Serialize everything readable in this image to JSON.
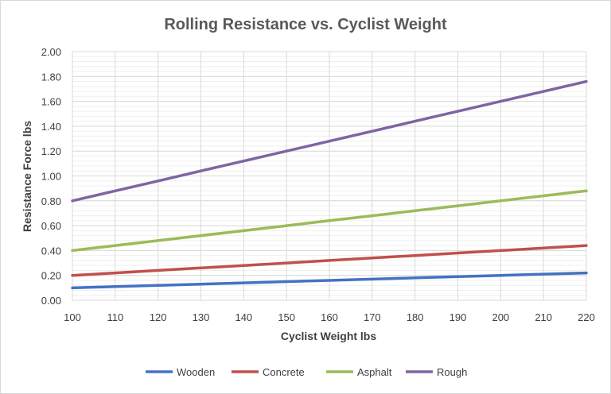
{
  "chart_data": {
    "type": "line",
    "title": "Rolling Resistance vs. Cyclist Weight",
    "xlabel": "Cyclist Weight lbs",
    "ylabel": "Resistance Force lbs",
    "x": [
      100,
      110,
      120,
      130,
      140,
      150,
      160,
      170,
      180,
      190,
      200,
      210,
      220
    ],
    "xlim": [
      100,
      220
    ],
    "ylim": [
      0,
      2
    ],
    "x_ticks": [
      "100",
      "110",
      "120",
      "130",
      "140",
      "150",
      "160",
      "170",
      "180",
      "190",
      "200",
      "210",
      "220"
    ],
    "y_ticks": [
      "0.00",
      "0.20",
      "0.40",
      "0.60",
      "0.80",
      "1.00",
      "1.20",
      "1.40",
      "1.60",
      "1.80",
      "2.00"
    ],
    "grid": true,
    "legend_position": "bottom",
    "series": [
      {
        "name": "Wooden",
        "color": "#4472c4",
        "values": [
          0.1,
          0.11,
          0.12,
          0.13,
          0.14,
          0.15,
          0.16,
          0.17,
          0.18,
          0.19,
          0.2,
          0.21,
          0.22
        ]
      },
      {
        "name": "Concrete",
        "color": "#c0504d",
        "values": [
          0.2,
          0.22,
          0.24,
          0.26,
          0.28,
          0.3,
          0.32,
          0.34,
          0.36,
          0.38,
          0.4,
          0.42,
          0.44
        ]
      },
      {
        "name": "Asphalt",
        "color": "#9bbb59",
        "values": [
          0.4,
          0.44,
          0.48,
          0.52,
          0.56,
          0.6,
          0.64,
          0.68,
          0.72,
          0.76,
          0.8,
          0.84,
          0.88
        ]
      },
      {
        "name": "Rough",
        "color": "#8064a2",
        "values": [
          0.8,
          0.88,
          0.96,
          1.04,
          1.12,
          1.2,
          1.28,
          1.36,
          1.44,
          1.52,
          1.6,
          1.68,
          1.76
        ]
      }
    ]
  }
}
